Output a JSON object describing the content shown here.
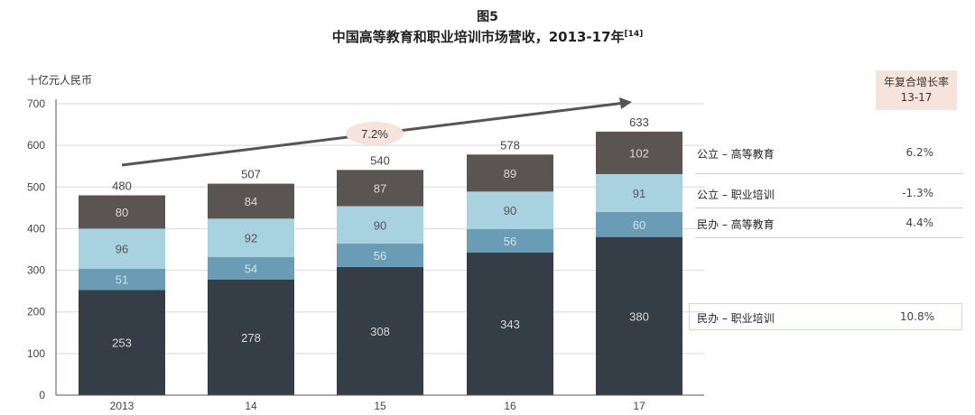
{
  "figure": {
    "label": "图5",
    "title": "中国高等教育和职业培训市场营收，2013-17年",
    "title_ref": "[14]",
    "unit": "十亿元人民币"
  },
  "chart_data": {
    "type": "bar",
    "stacked": true,
    "categories": [
      "2013",
      "14",
      "15",
      "16",
      "17"
    ],
    "ylim": [
      0,
      700
    ],
    "yticks": [
      0,
      100,
      200,
      300,
      400,
      500,
      600,
      700
    ],
    "series": [
      {
        "name": "民办 – 职业培训",
        "values": [
          253,
          278,
          308,
          343,
          380
        ],
        "color": "#353d47"
      },
      {
        "name": "民办 – 高等教育",
        "values": [
          51,
          54,
          56,
          56,
          60
        ],
        "color": "#6a9cb6"
      },
      {
        "name": "公立 – 职业培训",
        "values": [
          96,
          92,
          90,
          90,
          91
        ],
        "color": "#a9d2e0"
      },
      {
        "name": "公立 – 高等教育",
        "values": [
          80,
          84,
          87,
          89,
          102
        ],
        "color": "#5a5552"
      }
    ],
    "totals": [
      480,
      507,
      540,
      578,
      633
    ],
    "trend_label": "7.2%",
    "grid": true
  },
  "cagr_panel": {
    "header_line1": "年复合增长率",
    "header_line2": "13-17",
    "rows": [
      {
        "name": "公立 – 高等教育",
        "value": "6.2%"
      },
      {
        "name": "公立 – 职业培训",
        "value": "-1.3%"
      },
      {
        "name": "民办 – 高等教育",
        "value": "4.4%"
      },
      {
        "name": "民办 – 职业培训",
        "value": "10.8%"
      }
    ]
  }
}
